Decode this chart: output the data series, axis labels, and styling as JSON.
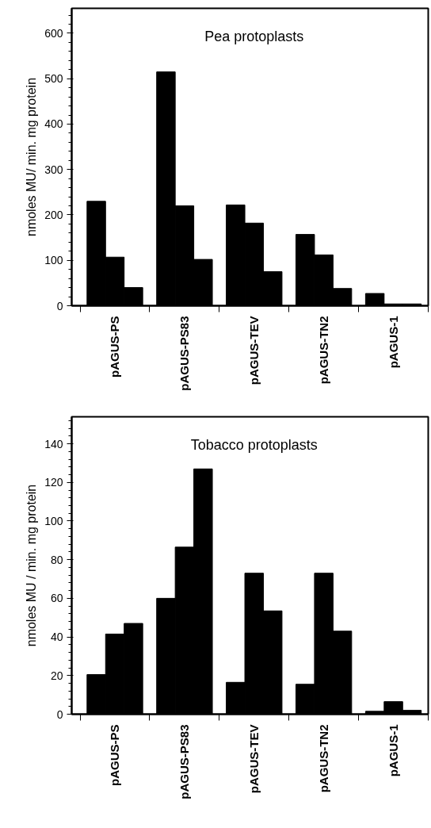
{
  "chart_data": [
    {
      "type": "bar",
      "title": "Pea protoplasts",
      "ylabel": "nmoles MU/ min. mg protein",
      "categories": [
        "pAGUS-PS",
        "pAGUS-PS83",
        "pAGUS-TEV",
        "pAGUS-TN2",
        "pAGUS-1"
      ],
      "series": [
        {
          "color": "#000000",
          "values": [
            230,
            515,
            222,
            157,
            27
          ]
        },
        {
          "color": "#000000",
          "values": [
            107,
            220,
            182,
            112,
            4
          ]
        },
        {
          "color": "#000000",
          "values": [
            40,
            102,
            75,
            38,
            4
          ]
        }
      ],
      "ylim": [
        0,
        655
      ],
      "yticks": [
        0,
        100,
        200,
        300,
        400,
        500,
        600
      ],
      "grid": false
    },
    {
      "type": "bar",
      "title": "Tobacco protoplasts",
      "ylabel": "nmoles MU / min. mg protein",
      "categories": [
        "pAGUS-PS",
        "pAGUS-PS83",
        "pAGUS-TEV",
        "pAGUS-TN2",
        "pAGUS-1"
      ],
      "series": [
        {
          "color": "#000000",
          "values": [
            20.5,
            60,
            16.5,
            15.5,
            1.5
          ]
        },
        {
          "color": "#000000",
          "values": [
            41.5,
            86.5,
            73,
            73,
            6.5
          ]
        },
        {
          "color": "#000000",
          "values": [
            47,
            127,
            53.5,
            43,
            2
          ]
        }
      ],
      "ylim": [
        0,
        154
      ],
      "yticks": [
        0,
        20,
        40,
        60,
        80,
        100,
        120,
        140
      ],
      "grid": false
    }
  ]
}
